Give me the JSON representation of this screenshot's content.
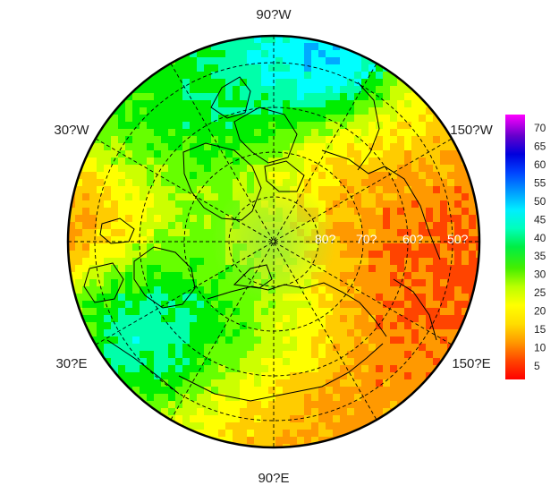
{
  "map": {
    "projection": "north polar stereographic",
    "longitude_labels": [
      {
        "id": "lon-90w",
        "text": "90?W"
      },
      {
        "id": "lon-30w",
        "text": "30?W"
      },
      {
        "id": "lon-150w",
        "text": "150?W"
      },
      {
        "id": "lon-30e",
        "text": "30?E"
      },
      {
        "id": "lon-150e",
        "text": "150?E"
      },
      {
        "id": "lon-90e",
        "text": "90?E"
      }
    ],
    "latitude_labels": [
      "80?",
      "70?",
      "60?",
      "50?"
    ],
    "colors": {
      "ocean_low": "#ff2a00",
      "mid": "#ffcc00",
      "green": "#22dd22",
      "cyan": "#00dddd",
      "blue": "#0044dd",
      "land_line": "#000000"
    }
  },
  "colorbar": {
    "ticks": [
      "70",
      "65",
      "60",
      "55",
      "50",
      "45",
      "40",
      "35",
      "30",
      "25",
      "20",
      "15",
      "10",
      "5"
    ],
    "range": [
      1,
      73
    ],
    "palette": [
      "#ff0000",
      "#ff4400",
      "#ff9900",
      "#ffcc00",
      "#ffff00",
      "#ccff00",
      "#66ff00",
      "#00ee00",
      "#00ffaa",
      "#00ffff",
      "#00aaff",
      "#0055ff",
      "#0000ee",
      "#5500cc",
      "#aa00ee",
      "#ff00ff"
    ]
  }
}
